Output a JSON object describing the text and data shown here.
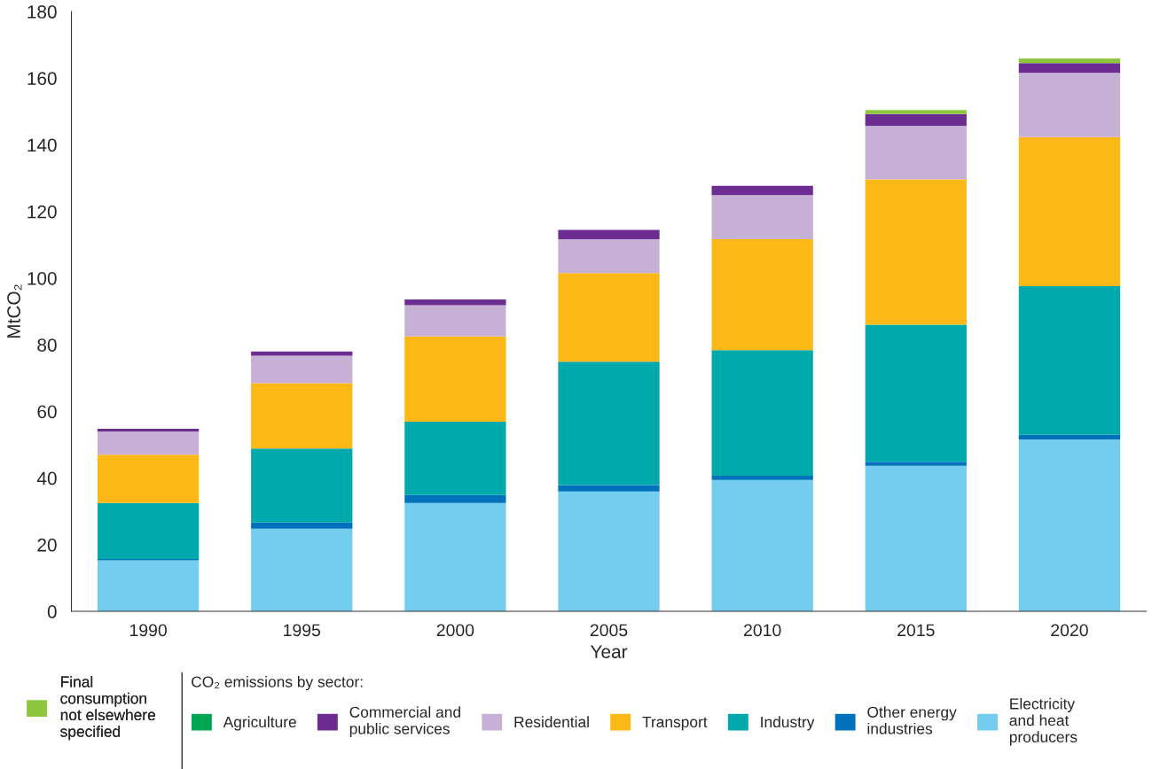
{
  "chart_data": {
    "type": "bar",
    "stacked": true,
    "xlabel": "Year",
    "ylabel": "MtCO₂",
    "legend_title": "CO₂ emissions by sector:",
    "legend": "bottom",
    "categories": [
      "1990",
      "1995",
      "2000",
      "2005",
      "2010",
      "2015",
      "2020"
    ],
    "ylim": [
      0,
      180
    ],
    "yticks": [
      0,
      20,
      40,
      60,
      80,
      100,
      120,
      140,
      160,
      180
    ],
    "grid": false,
    "series": [
      {
        "name": "Electricity\nand heat\nproducers",
        "color": "#72cdee",
        "values": [
          15.3,
          24.8,
          32.5,
          36.0,
          39.4,
          43.7,
          51.6
        ]
      },
      {
        "name": "Other energy\nindustries",
        "color": "#0072bc",
        "values": [
          0.4,
          1.9,
          2.4,
          1.9,
          1.3,
          1.2,
          1.4
        ]
      },
      {
        "name": "Industry",
        "color": "#00a9ac",
        "values": [
          16.8,
          22.2,
          22.0,
          37.0,
          37.7,
          41.1,
          44.6
        ]
      },
      {
        "name": "Transport",
        "color": "#fbb817",
        "values": [
          14.5,
          19.6,
          25.6,
          26.6,
          33.3,
          43.6,
          44.7
        ]
      },
      {
        "name": "Residential",
        "color": "#c6b0d5",
        "values": [
          7.0,
          8.2,
          9.4,
          10.2,
          13.2,
          16.1,
          19.3
        ]
      },
      {
        "name": "Commercial and\npublic services",
        "color": "#6d2c91",
        "values": [
          0.8,
          1.3,
          1.7,
          2.8,
          2.8,
          3.5,
          2.9
        ]
      },
      {
        "name": "Agriculture",
        "color": "#00a651",
        "values": [
          0,
          0,
          0,
          0,
          0,
          0,
          0
        ]
      },
      {
        "name": "Final\nconsumption\nnot elsewhere\nspecified",
        "color": "#8dc63f",
        "values": [
          0,
          0,
          0,
          0,
          0,
          1.2,
          1.4
        ]
      }
    ]
  }
}
